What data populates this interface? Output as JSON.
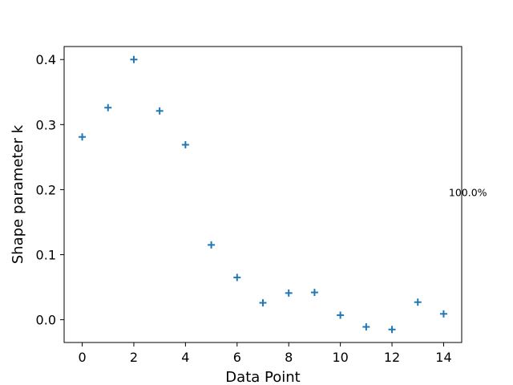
{
  "chart_data": {
    "type": "scatter",
    "marker": "plus",
    "color": "#1f77b4",
    "xlabel": "Data Point",
    "ylabel": "Shape parameter k",
    "xlim": [
      -0.7,
      14.7
    ],
    "ylim": [
      -0.035,
      0.42
    ],
    "xticks": [
      0,
      2,
      4,
      6,
      8,
      10,
      12,
      14
    ],
    "yticks": [
      0.0,
      0.1,
      0.2,
      0.3,
      0.4
    ],
    "xtick_labels": [
      "0",
      "2",
      "4",
      "6",
      "8",
      "10",
      "12",
      "14"
    ],
    "ytick_labels": [
      "0.0",
      "0.1",
      "0.2",
      "0.3",
      "0.4"
    ],
    "grid": false,
    "x": [
      0,
      1,
      2,
      3,
      4,
      5,
      6,
      7,
      8,
      9,
      10,
      11,
      12,
      13,
      14
    ],
    "y": [
      0.281,
      0.326,
      0.4,
      0.321,
      0.269,
      0.115,
      0.065,
      0.026,
      0.041,
      0.042,
      0.007,
      -0.011,
      -0.015,
      0.027,
      0.009
    ],
    "annotations": [
      {
        "text": "100.0%",
        "x": 14.2,
        "y": 0.19
      }
    ]
  }
}
